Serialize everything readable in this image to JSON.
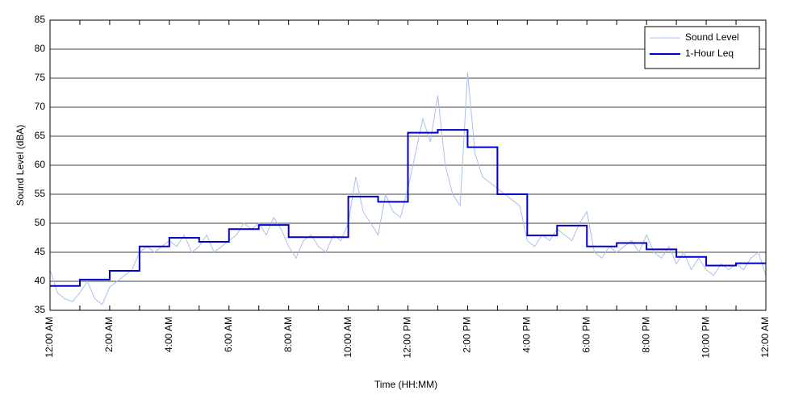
{
  "chart_data": {
    "type": "line",
    "xlabel": "Time (HH:MM)",
    "ylabel": "Sound Level (dBA)",
    "xlim": [
      0,
      24
    ],
    "ylim": [
      35,
      85
    ],
    "yticks": [
      35,
      40,
      45,
      50,
      55,
      60,
      65,
      70,
      75,
      80,
      85
    ],
    "xticks": [
      {
        "value": 0,
        "label": "12:00 AM"
      },
      {
        "value": 2,
        "label": "2:00 AM"
      },
      {
        "value": 4,
        "label": "4:00 AM"
      },
      {
        "value": 6,
        "label": "6:00 AM"
      },
      {
        "value": 8,
        "label": "8:00 AM"
      },
      {
        "value": 10,
        "label": "10:00 AM"
      },
      {
        "value": 12,
        "label": "12:00 PM"
      },
      {
        "value": 14,
        "label": "2:00 PM"
      },
      {
        "value": 16,
        "label": "4:00 PM"
      },
      {
        "value": 18,
        "label": "6:00 PM"
      },
      {
        "value": 20,
        "label": "8:00 PM"
      },
      {
        "value": 22,
        "label": "10:00 PM"
      },
      {
        "value": 24,
        "label": "12:00 AM"
      }
    ],
    "xminorticks": [
      1,
      3,
      5,
      7,
      9,
      11,
      13,
      15,
      17,
      19,
      21,
      23
    ],
    "grid": true,
    "legend": "upper right",
    "series": [
      {
        "name": "Sound Level",
        "color": "#a9c0f0",
        "width": 1,
        "x": [
          0,
          0.25,
          0.5,
          0.75,
          1,
          1.25,
          1.5,
          1.75,
          2,
          2.25,
          2.5,
          2.75,
          3,
          3.25,
          3.5,
          3.75,
          4,
          4.25,
          4.5,
          4.75,
          5,
          5.25,
          5.5,
          5.75,
          6,
          6.25,
          6.5,
          6.75,
          7,
          7.25,
          7.5,
          7.75,
          8,
          8.25,
          8.5,
          8.75,
          9,
          9.25,
          9.5,
          9.75,
          10,
          10.25,
          10.5,
          10.75,
          11,
          11.25,
          11.5,
          11.75,
          12,
          12.25,
          12.5,
          12.75,
          13,
          13.25,
          13.5,
          13.75,
          14,
          14.25,
          14.5,
          14.75,
          15,
          15.25,
          15.5,
          15.75,
          16,
          16.25,
          16.5,
          16.75,
          17,
          17.25,
          17.5,
          17.75,
          18,
          18.25,
          18.5,
          18.75,
          19,
          19.25,
          19.5,
          19.75,
          20,
          20.25,
          20.5,
          20.75,
          21,
          21.25,
          21.5,
          21.75,
          22,
          22.25,
          22.5,
          22.75,
          23,
          23.25,
          23.5,
          23.75,
          24
        ],
        "values": [
          42,
          38,
          37,
          36.5,
          38,
          40,
          37,
          36,
          39,
          40,
          41,
          42,
          45,
          46,
          45,
          46,
          47,
          46,
          48,
          45,
          46,
          48,
          45,
          46,
          47,
          48,
          50,
          49,
          50,
          48,
          51,
          49,
          46,
          44,
          47,
          48,
          46,
          45,
          48,
          47,
          50,
          58,
          52,
          50,
          48,
          55,
          52,
          51,
          56,
          62,
          68,
          64,
          72,
          60,
          55,
          53,
          76,
          62,
          58,
          57,
          56,
          55,
          54,
          53,
          47,
          46,
          48,
          47,
          49,
          48,
          47,
          50,
          52,
          45,
          44,
          46,
          45,
          46,
          47,
          45,
          48,
          45,
          44,
          46,
          43,
          45,
          42,
          44,
          42,
          41,
          43,
          42,
          43,
          42,
          44,
          45,
          41
        ]
      },
      {
        "name": "1-Hour Leq",
        "color": "#0000cc",
        "width": 2,
        "step": "post",
        "x": [
          0,
          1,
          2,
          3,
          4,
          5,
          6,
          7,
          8,
          9,
          10,
          11,
          12,
          13,
          14,
          15,
          16,
          17,
          18,
          19,
          20,
          21,
          22,
          23
        ],
        "values": [
          39.2,
          40.3,
          41.8,
          46,
          47.5,
          46.8,
          49,
          49.7,
          47.6,
          47.6,
          54.6,
          53.7,
          65.6,
          66.1,
          63.1,
          55,
          47.9,
          49.6,
          46,
          46.6,
          45.5,
          44.2,
          42.7,
          43.1
        ]
      }
    ]
  }
}
